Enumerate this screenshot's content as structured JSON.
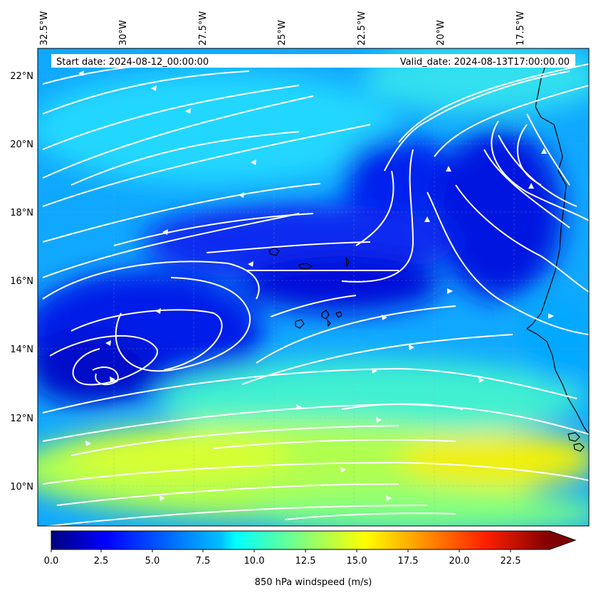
{
  "header": {
    "start_label": "Start date: 2024-08-12_00:00:00",
    "valid_label": "Valid_date: 2024-08-13T17:00:00.00"
  },
  "map": {
    "variable": "850 hPa windspeed",
    "lon_labels": [
      "32.5°W",
      "30°W",
      "27.5°W",
      "25°W",
      "22.5°W",
      "20°W",
      "17.5°W"
    ],
    "lat_labels": [
      "22°N",
      "20°N",
      "18°N",
      "16°N",
      "14°N",
      "12°N",
      "10°N"
    ],
    "streamline_color": "#ffffff",
    "coastline_color": "#000000"
  },
  "colorbar": {
    "label": "850 hPa windspeed (m/s)",
    "min": 0,
    "max": 25,
    "extend": "max",
    "colormap": "jet",
    "ticks": [
      "0.0",
      "2.5",
      "5.0",
      "7.5",
      "10.0",
      "12.5",
      "15.0",
      "17.5",
      "20.0",
      "22.5"
    ]
  },
  "colors": {
    "jet_low": "#00007f",
    "jet_mid": "#00ffff",
    "jet_high": "#7f0000"
  }
}
